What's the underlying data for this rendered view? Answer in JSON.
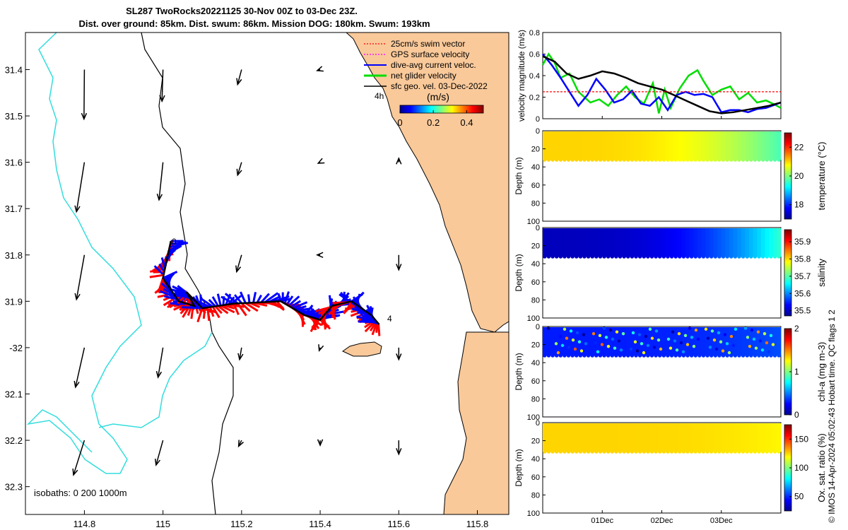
{
  "titles": {
    "line1": "SL287 TwoRocks20221125 30-Nov 00Z to 03-Dec 23Z.",
    "line2": "Dist. over ground: 85km. Dist. swum: 86km. Mission DOG: 180km. Swum: 193km"
  },
  "footer": "© IMOS 14-Apr-2024 05:02:43 Hobart time. QC flags 1  2",
  "colors": {
    "land": "#F9C99A",
    "glider_blue": "#0000FF",
    "glider_red": "#FF0000",
    "isobath_shallow": "#000000",
    "isobath_deep": "#33DDDD",
    "net_velocity": "#00CC00",
    "swim_red": "#FF0000",
    "gps_magenta": "#FF00FF"
  },
  "chart_data": [
    {
      "type": "map",
      "name": "glider-track-map",
      "x_ticks": [
        114.8,
        115,
        115.2,
        115.4,
        115.6,
        115.8
      ],
      "x_tick_labels": [
        "114.8",
        "115",
        "115.2",
        "115.4",
        "115.6",
        "115.8"
      ],
      "y_ticks": [
        -31.4,
        -31.5,
        -31.6,
        -31.7,
        -31.8,
        -31.9,
        -32,
        -32.1,
        -32.2,
        -32.3
      ],
      "y_tick_labels": [
        "31.4",
        "31.5",
        "31.6",
        "31.7",
        "31.8",
        "31.9",
        "-32",
        "32.1",
        "32.2",
        "32.3"
      ],
      "xlim": [
        114.65,
        115.88
      ],
      "ylim": [
        -32.36,
        -31.32
      ],
      "legend": [
        "25cm/s swim vector",
        "GPS surface velocity",
        "dive-avg current veloc.",
        "net glider velocity",
        "sfc geo. vel. 03-Dec-2022"
      ],
      "legend_marker": "4h",
      "colorbar": {
        "title": "(m/s)",
        "ticks": [
          0,
          0.2,
          0.4
        ],
        "tick_labels": [
          "0",
          "0.2",
          "0.4"
        ],
        "range": [
          0,
          0.5
        ]
      },
      "track_labels": [
        "0",
        "4"
      ],
      "isobaths_label": "isobaths: 0   200  1000m",
      "track": [
        [
          115.02,
          -31.77
        ],
        [
          115.0,
          -31.85
        ],
        [
          115.04,
          -31.9
        ],
        [
          115.08,
          -31.91
        ],
        [
          115.06,
          -31.88
        ],
        [
          115.1,
          -31.915
        ],
        [
          115.18,
          -31.905
        ],
        [
          115.3,
          -31.9
        ],
        [
          115.36,
          -31.93
        ],
        [
          115.4,
          -31.94
        ],
        [
          115.43,
          -31.91
        ],
        [
          115.48,
          -31.9
        ],
        [
          115.53,
          -31.93
        ],
        [
          115.55,
          -31.95
        ]
      ],
      "geo_vectors": [
        {
          "lon": 114.8,
          "lat": -31.4,
          "u": -0.004,
          "v": -0.5
        },
        {
          "lon": 115.0,
          "lat": -31.4,
          "u": -0.01,
          "v": -0.32
        },
        {
          "lon": 115.2,
          "lat": -31.4,
          "u": -0.04,
          "v": -0.15
        },
        {
          "lon": 115.4,
          "lat": -31.4,
          "u": -0.03,
          "v": -0.01
        },
        {
          "lon": 114.8,
          "lat": -31.6,
          "u": -0.08,
          "v": -0.5
        },
        {
          "lon": 115.0,
          "lat": -31.6,
          "u": -0.04,
          "v": -0.38
        },
        {
          "lon": 115.2,
          "lat": -31.6,
          "u": -0.04,
          "v": -0.13
        },
        {
          "lon": 115.4,
          "lat": -31.6,
          "u": -0.02,
          "v": -0.01
        },
        {
          "lon": 115.6,
          "lat": -31.6,
          "u": 0.0,
          "v": 0.04
        },
        {
          "lon": 114.8,
          "lat": -31.8,
          "u": -0.08,
          "v": -0.45
        },
        {
          "lon": 115.2,
          "lat": -31.8,
          "u": -0.05,
          "v": -0.17
        },
        {
          "lon": 115.4,
          "lat": -31.8,
          "u": -0.03,
          "v": 0.0
        },
        {
          "lon": 115.6,
          "lat": -31.8,
          "u": 0.0,
          "v": -0.15
        },
        {
          "lon": 114.8,
          "lat": -32.0,
          "u": -0.09,
          "v": -0.4
        },
        {
          "lon": 115.0,
          "lat": -32.0,
          "u": -0.05,
          "v": -0.3
        },
        {
          "lon": 115.2,
          "lat": -32.0,
          "u": -0.02,
          "v": -0.12
        },
        {
          "lon": 115.4,
          "lat": -32.0,
          "u": -0.01,
          "v": -0.03
        },
        {
          "lon": 115.6,
          "lat": -32.0,
          "u": 0.0,
          "v": -0.12
        },
        {
          "lon": 114.8,
          "lat": -32.2,
          "u": -0.11,
          "v": -0.35
        },
        {
          "lon": 115.0,
          "lat": -32.2,
          "u": -0.07,
          "v": -0.25
        },
        {
          "lon": 115.2,
          "lat": -32.2,
          "u": -0.03,
          "v": -0.06
        },
        {
          "lon": 115.4,
          "lat": -32.2,
          "u": 0.0,
          "v": -0.05
        },
        {
          "lon": 115.6,
          "lat": -32.2,
          "u": 0.0,
          "v": -0.14
        }
      ]
    },
    {
      "type": "line",
      "name": "velocity-magnitude",
      "ylabel": "velocity magnitude (m/s)",
      "ylim": [
        0,
        0.8
      ],
      "y_ticks": [
        0,
        0.2,
        0.4,
        0.6,
        0.8
      ],
      "x_ticks": [
        1,
        2,
        3
      ],
      "x_tick_labels": [
        "01Dec",
        "02Dec",
        "03Dec"
      ],
      "xlim": [
        0,
        4
      ],
      "series": [
        {
          "color": "#00DD00",
          "x": [
            0,
            0.1,
            0.2,
            0.3,
            0.45,
            0.6,
            0.8,
            0.95,
            1.1,
            1.25,
            1.4,
            1.55,
            1.7,
            1.85,
            1.95,
            2.05,
            2.15,
            2.3,
            2.45,
            2.6,
            2.7,
            2.85,
            3.0,
            3.15,
            3.3,
            3.45,
            3.6,
            3.75,
            3.9,
            4.0
          ],
          "y": [
            0.5,
            0.6,
            0.52,
            0.38,
            0.42,
            0.25,
            0.15,
            0.18,
            0.12,
            0.22,
            0.3,
            0.2,
            0.14,
            0.33,
            0.05,
            0.27,
            0.1,
            0.28,
            0.4,
            0.45,
            0.35,
            0.22,
            0.27,
            0.3,
            0.18,
            0.24,
            0.15,
            0.17,
            0.13,
            0.1
          ]
        },
        {
          "color": "#0000FF",
          "x": [
            0,
            0.15,
            0.3,
            0.45,
            0.6,
            0.75,
            0.9,
            1.05,
            1.2,
            1.35,
            1.5,
            1.65,
            1.8,
            1.95,
            2.1,
            2.25,
            2.4,
            2.55,
            2.7,
            2.85,
            3.0,
            3.15,
            3.3,
            3.45,
            3.6,
            3.75,
            3.9,
            4.0
          ],
          "y": [
            0.6,
            0.5,
            0.38,
            0.25,
            0.12,
            0.22,
            0.37,
            0.27,
            0.15,
            0.18,
            0.26,
            0.14,
            0.12,
            0.2,
            0.08,
            0.22,
            0.25,
            0.22,
            0.23,
            0.2,
            0.06,
            0.08,
            0.08,
            0.06,
            0.09,
            0.1,
            0.13,
            0.15
          ]
        },
        {
          "color": "#000000",
          "x": [
            0,
            0.2,
            0.4,
            0.6,
            0.8,
            1.0,
            1.2,
            1.4,
            1.6,
            1.8,
            2.0,
            2.2,
            2.4,
            2.6,
            2.8,
            3.0,
            3.2,
            3.4,
            3.6,
            3.8,
            4.0
          ],
          "y": [
            0.58,
            0.53,
            0.42,
            0.37,
            0.4,
            0.44,
            0.42,
            0.38,
            0.33,
            0.3,
            0.27,
            0.22,
            0.17,
            0.12,
            0.07,
            0.05,
            0.06,
            0.08,
            0.1,
            0.12,
            0.15
          ]
        },
        {
          "color": "#FF0000",
          "x": [
            0,
            4
          ],
          "y": [
            0.25,
            0.25
          ]
        }
      ]
    },
    {
      "type": "heatmap",
      "name": "temperature-section",
      "ylabel": "Depth (m)",
      "ylim": [
        0,
        100
      ],
      "y_ticks": [
        0,
        20,
        40,
        60,
        80,
        100
      ],
      "colorbar": {
        "label": "temperature (°C)",
        "ticks": [
          18,
          20,
          22
        ],
        "range": [
          17,
          23
        ]
      },
      "profile_depth": 32,
      "start_value": 21.0,
      "end_value": 19.7
    },
    {
      "type": "heatmap",
      "name": "salinity-section",
      "ylabel": "Depth (m)",
      "ylim": [
        0,
        100
      ],
      "y_ticks": [
        0,
        20,
        40,
        60,
        80,
        100
      ],
      "colorbar": {
        "label": "salinity",
        "ticks": [
          35.5,
          35.6,
          35.7,
          35.8,
          35.9
        ],
        "range": [
          35.47,
          35.97
        ]
      },
      "profile_depth": 32,
      "start_value": 35.5,
      "end_value": 35.68
    },
    {
      "type": "heatmap",
      "name": "chla-section",
      "ylabel": "Depth (m)",
      "ylim": [
        0,
        100
      ],
      "y_ticks": [
        0,
        20,
        40,
        60,
        80,
        100
      ],
      "colorbar": {
        "label": "chl-a (mg m-3)",
        "ticks": [
          0,
          1,
          2
        ],
        "range": [
          0,
          2
        ]
      },
      "profile_depth": 32,
      "start_value": 0.3,
      "end_value": 0.4
    },
    {
      "type": "heatmap",
      "name": "oxygen-section",
      "ylabel": "Depth (m)",
      "ylim": [
        0,
        100
      ],
      "y_ticks": [
        0,
        20,
        40,
        60,
        80,
        100
      ],
      "x_ticks": [
        1,
        2,
        3
      ],
      "x_tick_labels": [
        "01Dec",
        "02Dec",
        "03Dec"
      ],
      "colorbar": {
        "label": "Ox. sat. ratio (%)",
        "ticks": [
          50,
          100,
          150
        ],
        "range": [
          25,
          175
        ]
      },
      "profile_depth": 32,
      "start_value": 125,
      "end_value": 120
    }
  ]
}
